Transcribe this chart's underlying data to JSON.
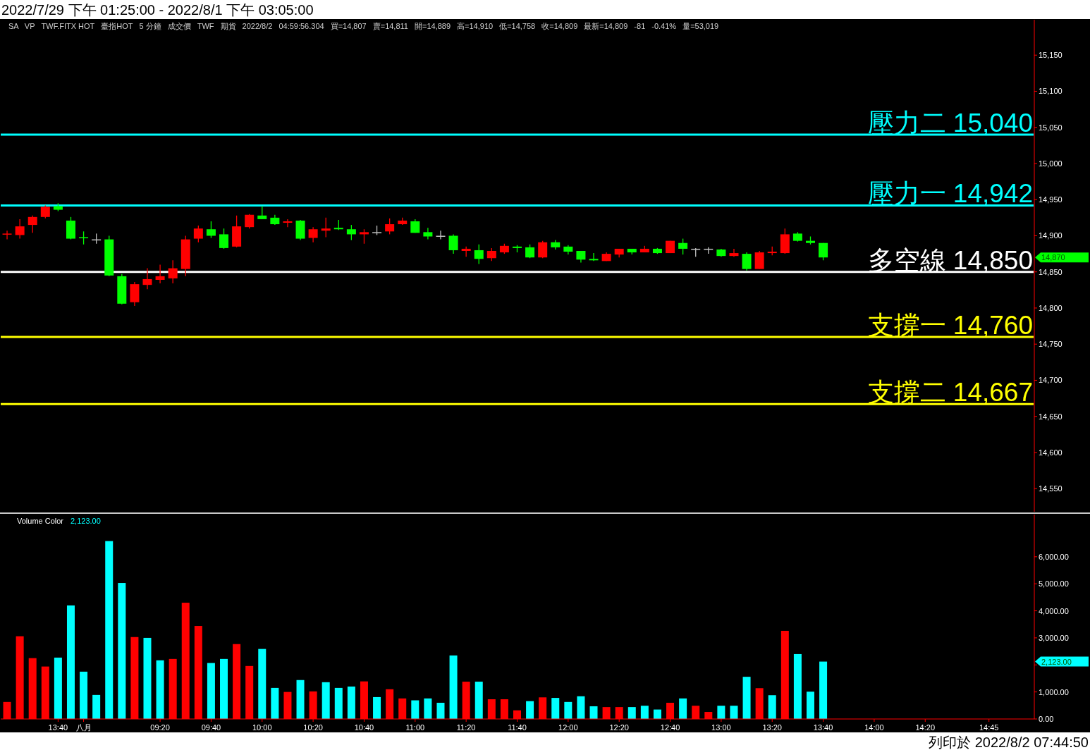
{
  "chart_data": [
    {
      "type": "candlestick",
      "title": "2022/7/29 下午 01:25:00 - 2022/8/1 下午 03:05:00",
      "annotations": [
        "SA",
        "VP",
        "TWF.FITX HOT",
        "臺指HOT",
        "5 分鐘",
        "成交價",
        "TWF",
        "期貨",
        "2022/8/2",
        "04:59:56.304",
        "買=14,807",
        "賣=14,811",
        "開=14,889",
        "高=14,910",
        "低=14,758",
        "收=14,809",
        "最新=14,809",
        "-81",
        "-0.41%",
        "量=53,019",
        "14,870"
      ],
      "tick_labels": "y",
      "ohlc": [
        [
          14902,
          14907,
          14895,
          14903
        ],
        [
          14901,
          14923,
          14896,
          14913
        ],
        [
          14915,
          14928,
          14904,
          14926
        ],
        [
          14926,
          14942,
          14924,
          14940
        ],
        [
          14941,
          14945,
          14934,
          14936
        ],
        [
          14921,
          14926,
          14895,
          14896
        ],
        [
          14898,
          14906,
          14888,
          14897
        ],
        [
          14895,
          14903,
          14889,
          14895
        ],
        [
          14895,
          14900,
          14844,
          14845
        ],
        [
          14844,
          14847,
          14805,
          14806
        ],
        [
          14808,
          14836,
          14803,
          14833
        ],
        [
          14832,
          14855,
          14826,
          14840
        ],
        [
          14839,
          14860,
          14834,
          14844
        ],
        [
          14841,
          14866,
          14834,
          14855
        ],
        [
          14854,
          14900,
          14844,
          14895
        ],
        [
          14896,
          14914,
          14891,
          14910
        ],
        [
          14909,
          14920,
          14897,
          14900
        ],
        [
          14902,
          14910,
          14882,
          14883
        ],
        [
          14885,
          14928,
          14884,
          14913
        ],
        [
          14912,
          14930,
          14910,
          14929
        ],
        [
          14928,
          14941,
          14923,
          14923
        ],
        [
          14925,
          14929,
          14915,
          14916
        ],
        [
          14918,
          14923,
          14912,
          14920
        ],
        [
          14921,
          14922,
          14894,
          14896
        ],
        [
          14897,
          14912,
          14891,
          14909
        ],
        [
          14907,
          14925,
          14898,
          14910
        ],
        [
          14911,
          14922,
          14908,
          14909
        ],
        [
          14909,
          14915,
          14894,
          14902
        ],
        [
          14902,
          14909,
          14889,
          14905
        ],
        [
          14905,
          14914,
          14901,
          14905
        ],
        [
          14906,
          14924,
          14902,
          14916
        ],
        [
          14916,
          14925,
          14915,
          14921
        ],
        [
          14920,
          14923,
          14904,
          14904
        ],
        [
          14905,
          14911,
          14895,
          14899
        ],
        [
          14900,
          14907,
          14895,
          14900
        ],
        [
          14900,
          14902,
          14875,
          14880
        ],
        [
          14879,
          14885,
          14871,
          14882
        ],
        [
          14880,
          14888,
          14861,
          14868
        ],
        [
          14869,
          14883,
          14865,
          14879
        ],
        [
          14877,
          14889,
          14875,
          14886
        ],
        [
          14885,
          14887,
          14877,
          14883
        ],
        [
          14884,
          14888,
          14869,
          14870
        ],
        [
          14870,
          14893,
          14869,
          14891
        ],
        [
          14891,
          14894,
          14881,
          14884
        ],
        [
          14885,
          14887,
          14874,
          14878
        ],
        [
          14879,
          14879,
          14863,
          14867
        ],
        [
          14868,
          14876,
          14865,
          14866
        ],
        [
          14865,
          14877,
          14865,
          14875
        ],
        [
          14874,
          14882,
          14870,
          14882
        ],
        [
          14882,
          14882,
          14874,
          14877
        ],
        [
          14877,
          14886,
          14877,
          14882
        ],
        [
          14882,
          14883,
          14875,
          14876
        ],
        [
          14876,
          14893,
          14876,
          14893
        ],
        [
          14890,
          14896,
          14874,
          14882
        ],
        [
          14882,
          14883,
          14871,
          14882
        ],
        [
          14882,
          14884,
          14875,
          14882
        ],
        [
          14881,
          14882,
          14871,
          14872
        ],
        [
          14872,
          14882,
          14871,
          14876
        ],
        [
          14875,
          14877,
          14852,
          14854
        ],
        [
          14854,
          14879,
          14854,
          14877
        ],
        [
          14876,
          14885,
          14873,
          14878
        ],
        [
          14876,
          14910,
          14875,
          14902
        ],
        [
          14903,
          14905,
          14892,
          14893
        ],
        [
          14893,
          14899,
          14888,
          14890
        ],
        [
          14890,
          14890,
          14866,
          14870
        ],
        null,
        null,
        null,
        null,
        null,
        null,
        null,
        null,
        null,
        null,
        null,
        null,
        null,
        null,
        null,
        null
      ],
      "colors": [
        "#ff0000",
        "#ff0000",
        "#ff0000",
        "#ff0000",
        "#00ff00",
        "#00ff00",
        "#00ff00",
        "#c0c0c0",
        "#00ff00",
        "#00ff00",
        "#ff0000",
        "#ff0000",
        "#ff0000",
        "#ff0000",
        "#ff0000",
        "#ff0000",
        "#00ff00",
        "#00ff00",
        "#ff0000",
        "#ff0000",
        "#00ff00",
        "#00ff00",
        "#ff0000",
        "#00ff00",
        "#ff0000",
        "#ff0000",
        "#00ff00",
        "#00ff00",
        "#ff0000",
        "#c0c0c0",
        "#ff0000",
        "#ff0000",
        "#00ff00",
        "#00ff00",
        "#c0c0c0",
        "#00ff00",
        "#ff0000",
        "#00ff00",
        "#ff0000",
        "#ff0000",
        "#00ff00",
        "#00ff00",
        "#ff0000",
        "#00ff00",
        "#00ff00",
        "#00ff00",
        "#00ff00",
        "#ff0000",
        "#ff0000",
        "#00ff00",
        "#ff0000",
        "#00ff00",
        "#ff0000",
        "#00ff00",
        "#c0c0c0",
        "#c0c0c0",
        "#00ff00",
        "#ff0000",
        "#00ff00",
        "#ff0000",
        "#ff0000",
        "#ff0000",
        "#00ff00",
        "#00ff00",
        "#00ff00",
        null,
        null,
        null,
        null,
        null,
        null,
        null,
        null,
        null,
        null,
        null,
        null,
        null,
        null,
        null,
        null
      ],
      "ylim": [
        14518,
        15199
      ],
      "yticks": [
        {
          "value": 14550,
          "label": "14,550"
        },
        {
          "value": 14600,
          "label": "14,600"
        },
        {
          "value": 14650,
          "label": "14,650"
        },
        {
          "value": 14700,
          "label": "14,700"
        },
        {
          "value": 14750,
          "label": "14,750"
        },
        {
          "value": 14800,
          "label": "14,800"
        },
        {
          "value": 14850,
          "label": "14,850"
        },
        {
          "value": 14900,
          "label": "14,900"
        },
        {
          "value": 14950,
          "label": "14,950"
        },
        {
          "value": 15000,
          "label": "15,000"
        },
        {
          "value": 15050,
          "label": "15,050"
        },
        {
          "value": 15100,
          "label": "15,100"
        },
        {
          "value": 15150,
          "label": "15,150"
        }
      ],
      "ref_lines": [
        {
          "axis": "y",
          "value": 15040,
          "label": "壓力二 15,040",
          "color": "#00ffff"
        },
        {
          "axis": "y",
          "value": 14942,
          "label": "壓力一 14,942",
          "color": "#00ffff"
        },
        {
          "axis": "y",
          "value": 14850,
          "label": "多空線 14,850",
          "color": "#ffffff"
        },
        {
          "axis": "y",
          "value": 14760,
          "label": "支撐一 14,760",
          "color": "#ffff00"
        },
        {
          "axis": "y",
          "value": 14667,
          "label": "支撐二 14,667",
          "color": "#ffff00"
        }
      ]
    },
    {
      "type": "bar",
      "title": "Volume Color",
      "annotations": [
        "2,123.00",
        "2,123.00",
        "列印於 2022/8/2 07:44:50"
      ],
      "categories": [
        null,
        null,
        null,
        null,
        "13:40",
        null,
        "八月",
        null,
        null,
        null,
        null,
        null,
        "09:20",
        null,
        null,
        null,
        "09:40",
        null,
        null,
        null,
        "10:00",
        null,
        null,
        null,
        "10:20",
        null,
        null,
        null,
        "10:40",
        null,
        null,
        null,
        "11:00",
        null,
        null,
        null,
        "11:20",
        null,
        null,
        null,
        "11:40",
        null,
        null,
        null,
        "12:00",
        null,
        null,
        null,
        "12:20",
        null,
        null,
        null,
        "12:40",
        null,
        null,
        null,
        "13:00",
        null,
        null,
        null,
        "13:20",
        null,
        null,
        null,
        "13:40",
        null,
        null,
        null,
        "14:00",
        null,
        null,
        null,
        "14:20",
        null,
        null,
        null,
        null,
        "14:45",
        null,
        null,
        null
      ],
      "values": [
        630,
        3060,
        2250,
        1940,
        2270,
        4200,
        1750,
        890,
        6580,
        5030,
        3030,
        3000,
        2170,
        2220,
        4300,
        3440,
        2070,
        2220,
        2770,
        1960,
        2590,
        1150,
        1000,
        1440,
        1020,
        1360,
        1150,
        1200,
        1390,
        810,
        1100,
        760,
        690,
        760,
        600,
        2350,
        1380,
        1380,
        730,
        730,
        320,
        660,
        800,
        780,
        630,
        840,
        470,
        440,
        440,
        440,
        490,
        350,
        600,
        760,
        490,
        260,
        490,
        490,
        1560,
        1140,
        880,
        3260,
        2400,
        1010,
        2123,
        null,
        null,
        null,
        null,
        null,
        null,
        null,
        null,
        null,
        null,
        null,
        null,
        null,
        null,
        null,
        null
      ],
      "colors": [
        "#ff0000",
        "#ff0000",
        "#ff0000",
        "#ff0000",
        "#00ffff",
        "#00ffff",
        "#00ffff",
        "#00ffff",
        "#00ffff",
        "#00ffff",
        "#ff0000",
        "#00ffff",
        "#00ffff",
        "#ff0000",
        "#ff0000",
        "#ff0000",
        "#00ffff",
        "#00ffff",
        "#ff0000",
        "#ff0000",
        "#00ffff",
        "#00ffff",
        "#ff0000",
        "#00ffff",
        "#ff0000",
        "#00ffff",
        "#00ffff",
        "#00ffff",
        "#ff0000",
        "#00ffff",
        "#ff0000",
        "#ff0000",
        "#00ffff",
        "#00ffff",
        "#00ffff",
        "#00ffff",
        "#ff0000",
        "#00ffff",
        "#ff0000",
        "#ff0000",
        "#ff0000",
        "#00ffff",
        "#ff0000",
        "#00ffff",
        "#00ffff",
        "#00ffff",
        "#00ffff",
        "#ff0000",
        "#ff0000",
        "#00ffff",
        "#00ffff",
        "#00ffff",
        "#ff0000",
        "#00ffff",
        "#ff0000",
        "#ff0000",
        "#00ffff",
        "#00ffff",
        "#00ffff",
        "#ff0000",
        "#00ffff",
        "#ff0000",
        "#00ffff",
        "#00ffff",
        "#00ffff",
        null,
        null,
        null,
        null,
        null,
        null,
        null,
        null,
        null,
        null,
        null,
        null,
        null,
        null,
        null,
        null
      ],
      "ylim": [
        0,
        7560
      ],
      "yticks": [
        {
          "value": 0,
          "label": "0.00"
        },
        {
          "value": 1000,
          "label": "1,000.00"
        },
        {
          "value": 2000,
          "label": null
        },
        {
          "value": 3000,
          "label": "3,000.00"
        },
        {
          "value": 4000,
          "label": "4,000.00"
        },
        {
          "value": 5000,
          "label": "5,000.00"
        },
        {
          "value": 6000,
          "label": "6,000.00"
        }
      ]
    }
  ]
}
